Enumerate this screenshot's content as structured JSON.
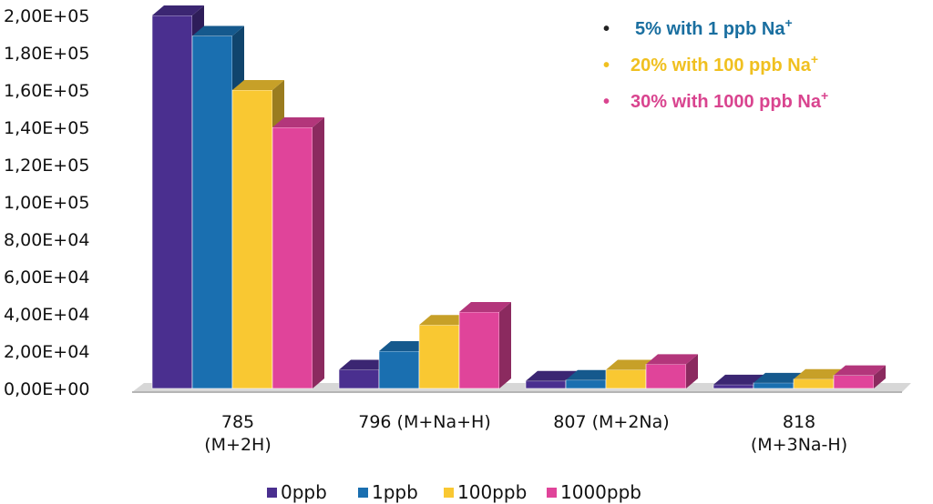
{
  "chart_data": {
    "type": "bar",
    "style": "3d-clustered",
    "categories": [
      [
        "785",
        "(M+2H)"
      ],
      [
        "796 (M+Na+H)"
      ],
      [
        "807 (M+2Na)"
      ],
      [
        "818",
        "(M+3Na-H)"
      ]
    ],
    "series": [
      {
        "name": "0ppb",
        "color": "#4a2f8f",
        "values": [
          200000,
          10000,
          4000,
          2000
        ]
      },
      {
        "name": "1ppb",
        "color": "#1a6fb0",
        "values": [
          189000,
          20000,
          4500,
          3000
        ]
      },
      {
        "name": "100ppb",
        "color": "#f9c832",
        "values": [
          160000,
          34000,
          10000,
          5000
        ]
      },
      {
        "name": "1000ppb",
        "color": "#e0449a",
        "values": [
          140000,
          41000,
          13000,
          7000
        ]
      }
    ],
    "y_ticks": [
      "0,00E+00",
      "2,00E+04",
      "4,00E+04",
      "6,00E+04",
      "8,00E+04",
      "1,00E+05",
      "1,20E+05",
      "1,40E+05",
      "1,60E+05",
      "1,80E+05",
      "2,00E+05"
    ],
    "ylim": [
      0,
      200000
    ],
    "title": "",
    "xlabel": "",
    "ylabel": "",
    "grid": false,
    "legend_position": "bottom",
    "annotations": [
      {
        "bullet": "•",
        "text": "5% with 1 ppb Na",
        "sup": "+",
        "color": "#1a6fa0",
        "bullet_color": "#222222"
      },
      {
        "bullet": "•",
        "text": "20% with 100 ppb Na",
        "sup": "+",
        "color": "#f0c020",
        "bullet_color": "#f0c020"
      },
      {
        "bullet": "•",
        "text": "30% with 1000 ppb Na",
        "sup": "+",
        "color": "#d9448f",
        "bullet_color": "#d9448f"
      }
    ]
  }
}
